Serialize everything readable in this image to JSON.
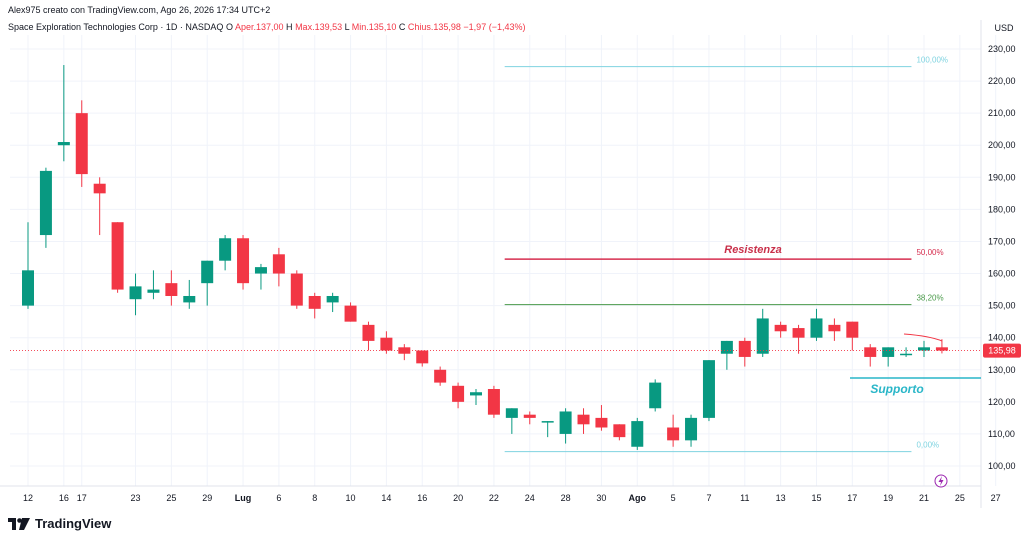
{
  "header": {
    "attribution": "Alex975 creato con TradingView.com, Ago 26, 2026 17:34 UTC+2",
    "symbol": "Space Exploration Technologies Corp · 1D · NASDAQ",
    "open_label": "O",
    "open": "Aper.137,00",
    "high_label": "H",
    "high": "Max.139,53",
    "low_label": "L",
    "low": "Min.135,10",
    "close_label": "C",
    "close": "Chius.135,98",
    "change": "−1,97 (−1,43%)"
  },
  "brand": {
    "name": "TradingView"
  },
  "chart_data": {
    "type": "candlestick",
    "currency_label": "USD",
    "ylim": [
      94,
      234
    ],
    "y_ticks": [
      100,
      110,
      120,
      130,
      140,
      150,
      160,
      170,
      180,
      190,
      200,
      210,
      220,
      230
    ],
    "y_tick_labels": [
      "100,00",
      "110,00",
      "120,00",
      "130,00",
      "140,00",
      "150,00",
      "160,00",
      "170,00",
      "180,00",
      "190,00",
      "200,00",
      "210,00",
      "220,00",
      "230,00"
    ],
    "x_ticks": [
      {
        "index": 0,
        "label": "12"
      },
      {
        "index": 2,
        "label": "16"
      },
      {
        "index": 3,
        "label": "17"
      },
      {
        "index": 6,
        "label": "23"
      },
      {
        "index": 8,
        "label": "25"
      },
      {
        "index": 10,
        "label": "29"
      },
      {
        "index": 12,
        "label": "Lug"
      },
      {
        "index": 14,
        "label": "6"
      },
      {
        "index": 16,
        "label": "8"
      },
      {
        "index": 18,
        "label": "10"
      },
      {
        "index": 20,
        "label": "14"
      },
      {
        "index": 22,
        "label": "16"
      },
      {
        "index": 24,
        "label": "20"
      },
      {
        "index": 26,
        "label": "22"
      },
      {
        "index": 28,
        "label": "24"
      },
      {
        "index": 30,
        "label": "28"
      },
      {
        "index": 32,
        "label": "30"
      },
      {
        "index": 34,
        "label": "Ago"
      },
      {
        "index": 36,
        "label": "5"
      },
      {
        "index": 38,
        "label": "7"
      },
      {
        "index": 40,
        "label": "11"
      },
      {
        "index": 42,
        "label": "13"
      },
      {
        "index": 44,
        "label": "15"
      },
      {
        "index": 46,
        "label": "17"
      },
      {
        "index": 48,
        "label": "19"
      },
      {
        "index": 50,
        "label": "21"
      },
      {
        "index": 52,
        "label": "25"
      },
      {
        "index": 54,
        "label": "27"
      }
    ],
    "candles": [
      {
        "o": 150,
        "h": 176,
        "l": 149,
        "c": 161
      },
      {
        "o": 172,
        "h": 193,
        "l": 168,
        "c": 192
      },
      {
        "o": 200,
        "h": 225,
        "l": 195,
        "c": 201
      },
      {
        "o": 210,
        "h": 214,
        "l": 187,
        "c": 191
      },
      {
        "o": 188,
        "h": 190,
        "l": 172,
        "c": 185
      },
      {
        "o": 176,
        "h": 176,
        "l": 154,
        "c": 155
      },
      {
        "o": 152,
        "h": 160,
        "l": 147,
        "c": 156
      },
      {
        "o": 154,
        "h": 161,
        "l": 152,
        "c": 155
      },
      {
        "o": 157,
        "h": 161,
        "l": 150,
        "c": 153
      },
      {
        "o": 151,
        "h": 158,
        "l": 149,
        "c": 153
      },
      {
        "o": 157,
        "h": 164,
        "l": 150,
        "c": 164
      },
      {
        "o": 164,
        "h": 172,
        "l": 161,
        "c": 171
      },
      {
        "o": 171,
        "h": 172,
        "l": 155,
        "c": 157
      },
      {
        "o": 160,
        "h": 163,
        "l": 155,
        "c": 162
      },
      {
        "o": 166,
        "h": 168,
        "l": 156,
        "c": 160
      },
      {
        "o": 160,
        "h": 161,
        "l": 149,
        "c": 150
      },
      {
        "o": 153,
        "h": 154,
        "l": 146,
        "c": 149
      },
      {
        "o": 151,
        "h": 154,
        "l": 148,
        "c": 153
      },
      {
        "o": 150,
        "h": 151,
        "l": 145,
        "c": 145
      },
      {
        "o": 144,
        "h": 145,
        "l": 136,
        "c": 139
      },
      {
        "o": 140,
        "h": 142,
        "l": 135,
        "c": 136
      },
      {
        "o": 137,
        "h": 138,
        "l": 133,
        "c": 135
      },
      {
        "o": 136,
        "h": 136,
        "l": 131,
        "c": 132
      },
      {
        "o": 130,
        "h": 131,
        "l": 125,
        "c": 126
      },
      {
        "o": 125,
        "h": 126,
        "l": 118,
        "c": 120
      },
      {
        "o": 122,
        "h": 124,
        "l": 119,
        "c": 123
      },
      {
        "o": 124,
        "h": 125,
        "l": 115,
        "c": 116
      },
      {
        "o": 115,
        "h": 118,
        "l": 110,
        "c": 118
      },
      {
        "o": 116,
        "h": 117,
        "l": 113,
        "c": 115
      },
      {
        "o": 114,
        "h": 114,
        "l": 109,
        "c": 114
      },
      {
        "o": 110,
        "h": 118,
        "l": 107,
        "c": 117
      },
      {
        "o": 116,
        "h": 118,
        "l": 110,
        "c": 113
      },
      {
        "o": 115,
        "h": 119,
        "l": 111,
        "c": 112
      },
      {
        "o": 113,
        "h": 113,
        "l": 108,
        "c": 109
      },
      {
        "o": 106,
        "h": 115,
        "l": 105,
        "c": 114
      },
      {
        "o": 118,
        "h": 127,
        "l": 117,
        "c": 126
      },
      {
        "o": 112,
        "h": 116,
        "l": 106,
        "c": 108
      },
      {
        "o": 108,
        "h": 116,
        "l": 106,
        "c": 115
      },
      {
        "o": 115,
        "h": 133,
        "l": 114,
        "c": 133
      },
      {
        "o": 135,
        "h": 139,
        "l": 130,
        "c": 139
      },
      {
        "o": 139,
        "h": 140,
        "l": 131,
        "c": 134
      },
      {
        "o": 135,
        "h": 149,
        "l": 134,
        "c": 146
      },
      {
        "o": 144,
        "h": 145,
        "l": 140,
        "c": 142
      },
      {
        "o": 143,
        "h": 144,
        "l": 135,
        "c": 140
      },
      {
        "o": 140,
        "h": 149,
        "l": 139,
        "c": 146
      },
      {
        "o": 144,
        "h": 146,
        "l": 139,
        "c": 142
      },
      {
        "o": 145,
        "h": 145,
        "l": 136,
        "c": 140
      },
      {
        "o": 137,
        "h": 138,
        "l": 131,
        "c": 134
      },
      {
        "o": 134,
        "h": 137,
        "l": 131,
        "c": 137
      },
      {
        "o": 135,
        "h": 137,
        "l": 134,
        "c": 135
      },
      {
        "o": 136,
        "h": 139,
        "l": 134,
        "c": 137
      },
      {
        "o": 137,
        "h": 139.53,
        "l": 135.1,
        "c": 135.98
      }
    ],
    "candle_index_offset": 0,
    "last_price": 135.98,
    "last_price_label": "135,98",
    "fib_retracement": {
      "start_index": 26.6,
      "end_index": 49.3,
      "levels": [
        {
          "ratio_label": "100,00%",
          "price": 224.5,
          "color": "#7fd3e0"
        },
        {
          "ratio_label": "50,00%",
          "price": 164.5,
          "color": "#d62e4f"
        },
        {
          "ratio_label": "38,20%",
          "price": 150.3,
          "color": "#4a9a4a"
        },
        {
          "ratio_label": "0,00%",
          "price": 104.5,
          "color": "#7fd3e0"
        }
      ]
    },
    "annotations": [
      {
        "text": "Resistenza",
        "color": "#c9304a"
      },
      {
        "text": "Supporto",
        "color": "#29b6c8"
      }
    ],
    "colors": {
      "up": "#089981",
      "down": "#f23645",
      "grid": "#f0f3fa",
      "axis_text": "#131722"
    }
  }
}
